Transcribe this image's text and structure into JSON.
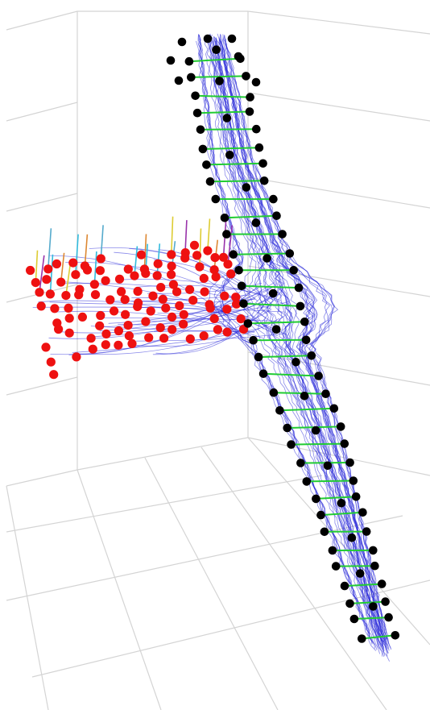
{
  "figure": {
    "type": "3d-trajectory-plot",
    "background": "#ffffff",
    "grid_color": "#d4d4d4",
    "trajectory_color": "#2a2ad8",
    "main_node_color": "#000000",
    "main_link_color": "#22cc33",
    "branch_node_color": "#ee1111",
    "branch_stem_colors": [
      "#33bbdd",
      "#ddcc33",
      "#dd8833",
      "#9933aa",
      "#55aacc"
    ],
    "trajectory_count": 45,
    "main_node_levels": 34,
    "branch_node_rows": 9,
    "branch_node_cols": 15
  }
}
